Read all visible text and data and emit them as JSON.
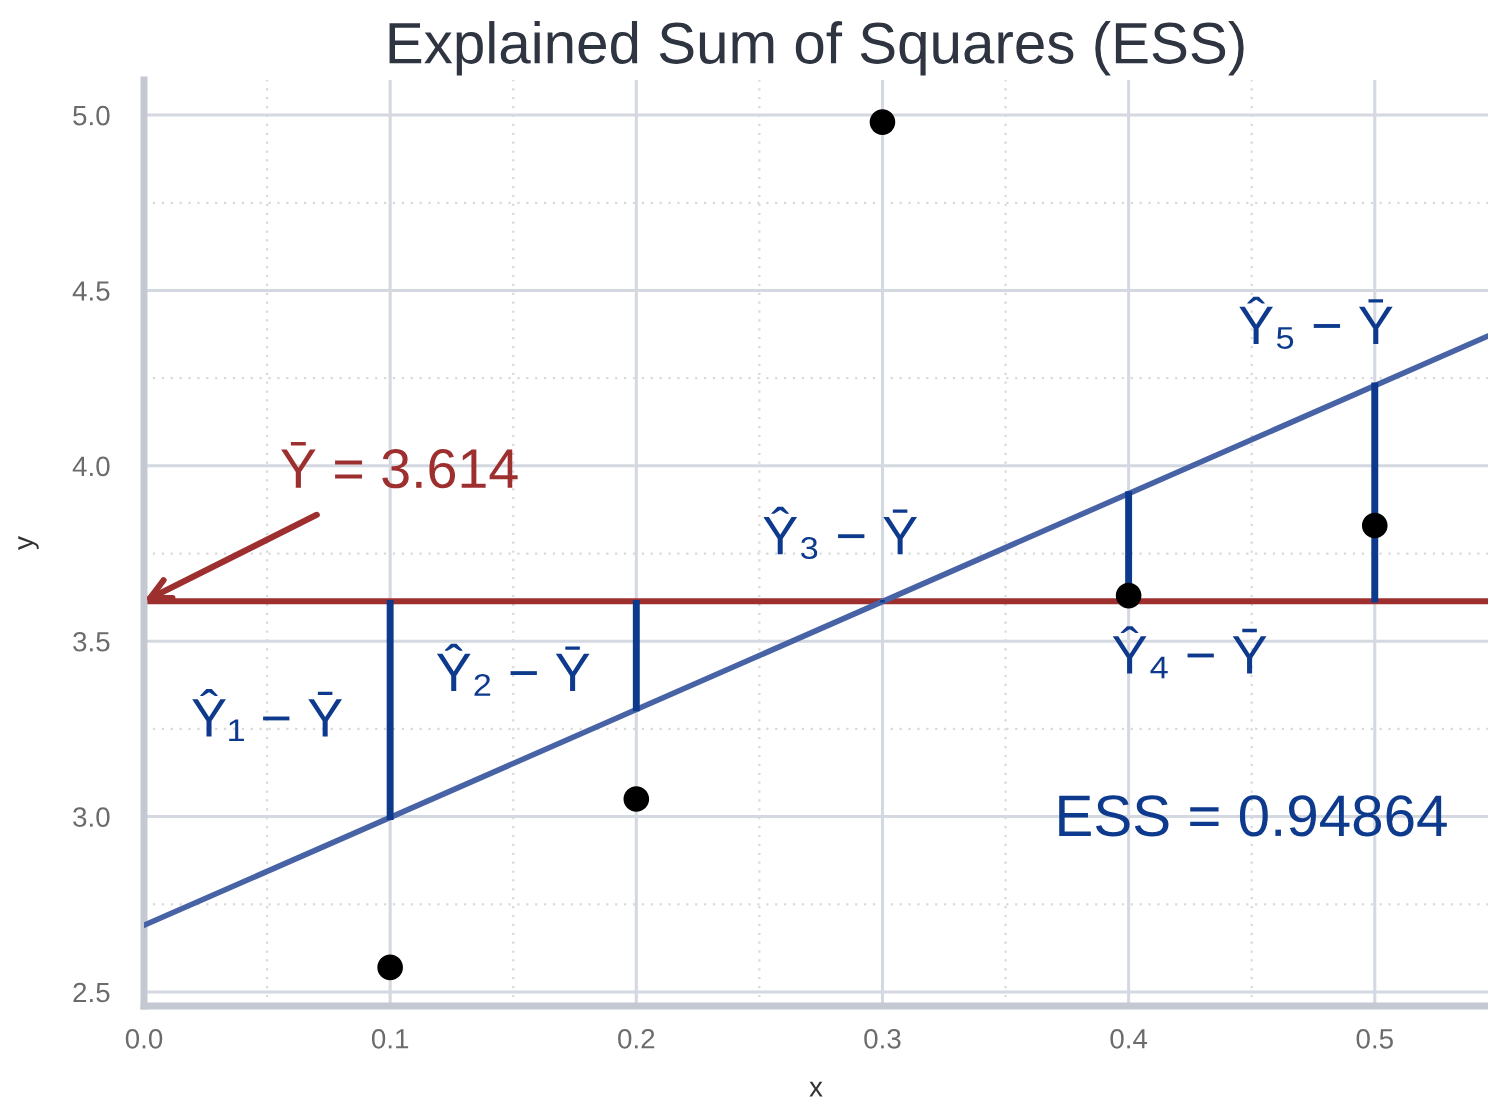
{
  "chart_data": {
    "type": "scatter",
    "title": "Explained Sum of Squares (ESS)",
    "xlabel": "x",
    "ylabel": "y",
    "series": [
      {
        "type": "line",
        "color": "#4763a6",
        "x": [
          0,
          0.546
        ],
        "values": [
          2.69,
          4.37
        ]
      },
      {
        "type": "bar",
        "color": "#0d3a8c",
        "x": [
          0.1,
          0.2,
          0.3,
          0.4,
          0.5
        ],
        "base": [
          3.614,
          3.614,
          3.614,
          3.614,
          3.614
        ],
        "values": [
          -0.62,
          -0.31,
          0,
          0.31,
          0.62
        ]
      },
      {
        "color": "#000000",
        "marker": "circle",
        "x": [
          0.1,
          0.2,
          0.3,
          0.4,
          0.5
        ],
        "values": [
          2.57,
          3.05,
          4.98,
          3.63,
          3.83
        ]
      }
    ],
    "ref_lines": [
      {
        "axis": "y",
        "value": 3.614,
        "label": "Ȳ = 3.614",
        "color": "#9e2f2f"
      }
    ],
    "annotations": [
      "Ŷ₁ − Ȳ",
      "Ŷ₂ − Ȳ",
      "Ŷ₃ − Ȳ",
      "Ŷ₄ − Ȳ",
      "Ŷ₅ − Ȳ",
      "ESS = 0.94864"
    ],
    "xlim": [
      0,
      0.546
    ],
    "ylim": [
      2.46,
      5.1
    ],
    "xticks": [
      {
        "value": 0,
        "label": "0.0"
      },
      0.1,
      0.2,
      0.3,
      0.4,
      0.5
    ],
    "yticks": [
      2.5,
      {
        "value": 3,
        "label": "3.0"
      },
      3.5,
      {
        "value": 4,
        "label": "4.0"
      },
      4.5,
      {
        "value": 5,
        "label": "5.0"
      }
    ],
    "grid": true
  }
}
